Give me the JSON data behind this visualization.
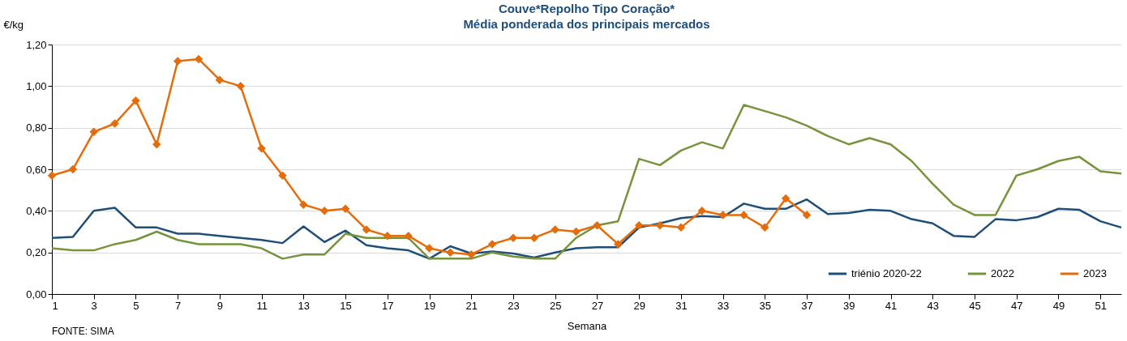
{
  "chart_data": {
    "type": "line",
    "title": "Couve*Repolho Tipo Coração*",
    "subtitle": "Média ponderada dos principais mercados",
    "xlabel": "Semana",
    "ylabel": "€/kg",
    "annotations": [
      "FONTE: SIMA"
    ],
    "x": [
      1,
      2,
      3,
      4,
      5,
      6,
      7,
      8,
      9,
      10,
      11,
      12,
      13,
      14,
      15,
      16,
      17,
      18,
      19,
      20,
      21,
      22,
      23,
      24,
      25,
      26,
      27,
      28,
      29,
      30,
      31,
      32,
      33,
      34,
      35,
      36,
      37,
      38,
      39,
      40,
      41,
      42,
      43,
      44,
      45,
      46,
      47,
      48,
      49,
      50,
      51,
      52
    ],
    "series": [
      {
        "name": "triénio 2020-22",
        "color": "#1f4e79",
        "values": [
          0.27,
          0.275,
          0.4,
          0.415,
          0.32,
          0.32,
          0.29,
          0.29,
          0.28,
          0.27,
          0.26,
          0.245,
          0.325,
          0.25,
          0.305,
          0.235,
          0.22,
          0.21,
          0.17,
          0.23,
          0.195,
          0.205,
          0.195,
          0.175,
          0.2,
          0.22,
          0.225,
          0.225,
          0.32,
          0.34,
          0.365,
          0.375,
          0.37,
          0.435,
          0.41,
          0.41,
          0.455,
          0.385,
          0.39,
          0.405,
          0.4,
          0.36,
          0.34,
          0.28,
          0.275,
          0.36,
          0.355,
          0.37,
          0.41,
          0.405,
          0.35,
          0.32
        ]
      },
      {
        "name": "2022",
        "color": "#77933c",
        "values": [
          0.22,
          0.21,
          0.21,
          0.24,
          0.26,
          0.3,
          0.26,
          0.24,
          0.24,
          0.24,
          0.22,
          0.17,
          0.19,
          0.19,
          0.29,
          0.27,
          0.27,
          0.27,
          0.17,
          0.17,
          0.17,
          0.2,
          0.18,
          0.17,
          0.17,
          0.27,
          0.33,
          0.35,
          0.65,
          0.62,
          0.69,
          0.73,
          0.7,
          0.91,
          0.88,
          0.85,
          0.81,
          0.76,
          0.72,
          0.75,
          0.72,
          0.64,
          0.53,
          0.43,
          0.38,
          0.38,
          0.57,
          0.6,
          0.64,
          0.66,
          0.59,
          0.58
        ]
      },
      {
        "name": "2023",
        "color": "#e46c0a",
        "marker": "diamond",
        "values": [
          0.57,
          0.6,
          0.78,
          0.82,
          0.93,
          0.72,
          1.12,
          1.13,
          1.03,
          1.0,
          0.7,
          0.57,
          0.43,
          0.4,
          0.41,
          0.31,
          0.28,
          0.28,
          0.22,
          0.2,
          0.19,
          0.24,
          0.27,
          0.27,
          0.31,
          0.3,
          0.33,
          0.24,
          0.33,
          0.33,
          0.32,
          0.4,
          0.38,
          0.38,
          0.32,
          0.46,
          0.38,
          null,
          null,
          null,
          null,
          null,
          null,
          null,
          null,
          null,
          null,
          null,
          null,
          null,
          null,
          null
        ]
      }
    ],
    "xlim": [
      1,
      52
    ],
    "xticks": [
      1,
      3,
      5,
      7,
      9,
      11,
      13,
      15,
      17,
      19,
      21,
      23,
      25,
      27,
      29,
      31,
      33,
      35,
      37,
      39,
      41,
      43,
      45,
      47,
      49,
      51
    ],
    "ylim": [
      0,
      1.2
    ],
    "yticks": [
      {
        "value": 0,
        "label": "0,00"
      },
      {
        "value": 0.2,
        "label": "0,20"
      },
      {
        "value": 0.4,
        "label": "0,40"
      },
      {
        "value": 0.6,
        "label": "0,60"
      },
      {
        "value": 0.8,
        "label": "0,80"
      },
      {
        "value": 1.0,
        "label": "1,00"
      },
      {
        "value": 1.2,
        "label": "1,20"
      }
    ],
    "grid": "y",
    "legend": "bottom right",
    "line_style": "solid"
  }
}
